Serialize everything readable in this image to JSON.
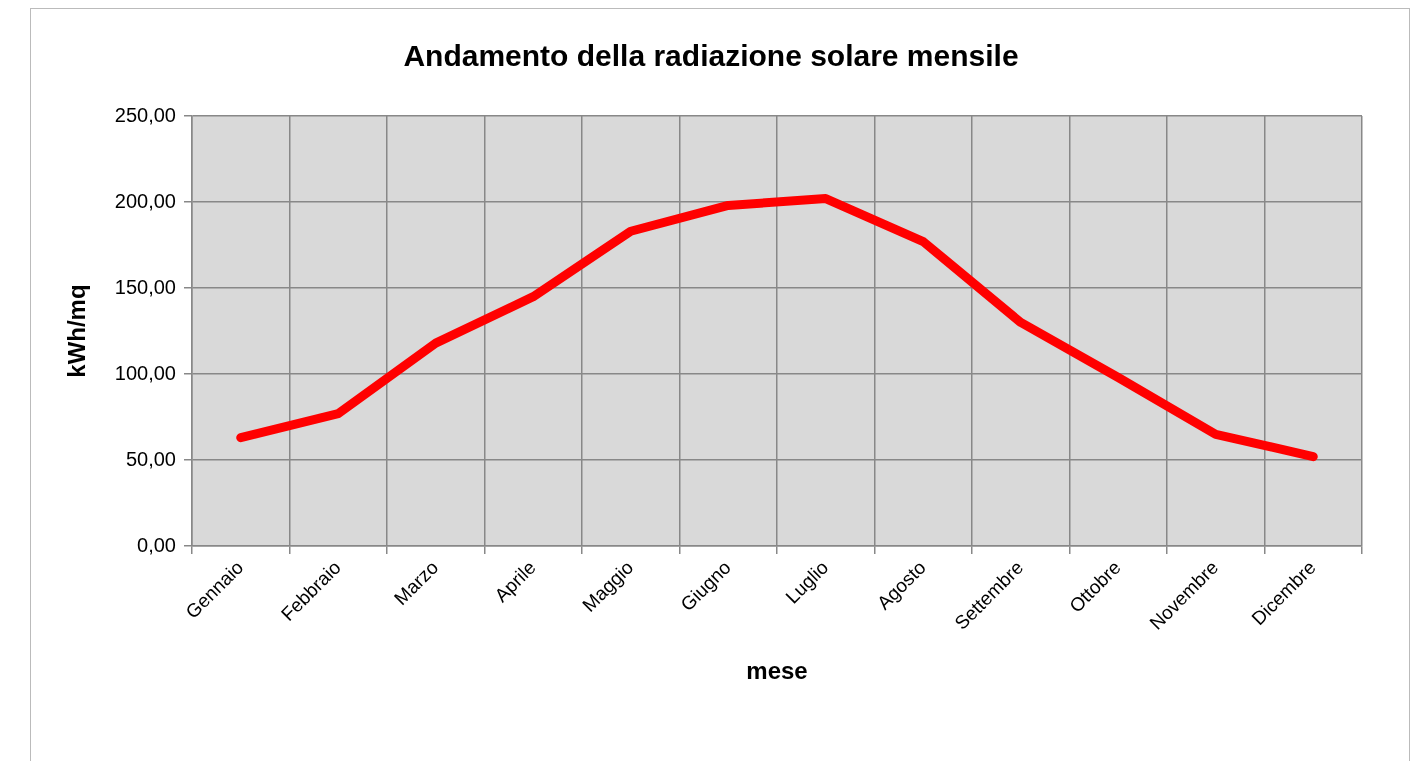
{
  "chart_data": {
    "type": "line",
    "title": "Andamento della radiazione solare mensile",
    "xlabel": "mese",
    "ylabel": "kWh/mq",
    "categories": [
      "Gennaio",
      "Febbraio",
      "Marzo",
      "Aprile",
      "Maggio",
      "Giugno",
      "Luglio",
      "Agosto",
      "Settembre",
      "Ottobre",
      "Novembre",
      "Dicembre"
    ],
    "series": [
      {
        "color": "#ff0000",
        "values": [
          63,
          77,
          118,
          145,
          183,
          198,
          202,
          177,
          130,
          98,
          65,
          52
        ]
      }
    ],
    "ylim": [
      0,
      250
    ],
    "yticks": [
      {
        "value": 0,
        "label": "0,00"
      },
      {
        "value": 50,
        "label": "50,00"
      },
      {
        "value": 100,
        "label": "100,00"
      },
      {
        "value": 150,
        "label": "150,00"
      },
      {
        "value": 200,
        "label": "200,00"
      },
      {
        "value": 250,
        "label": "250,00"
      }
    ],
    "grid": true,
    "legend": false,
    "marker": "none",
    "line_style": "solid"
  }
}
